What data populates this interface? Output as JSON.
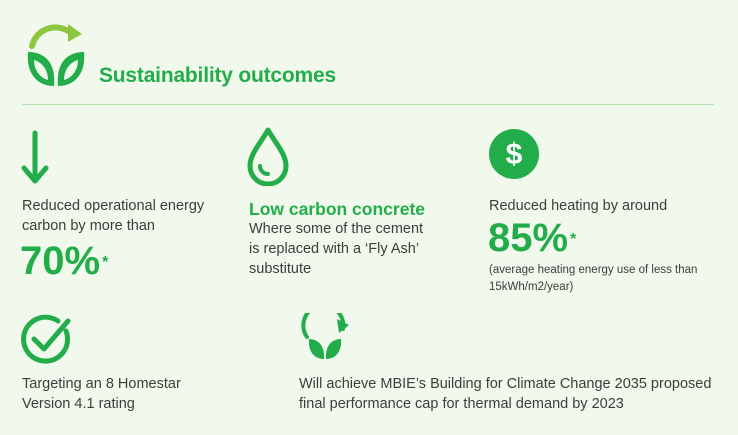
{
  "colors": {
    "accent": "#22ad4a",
    "background": "#f0f9ec",
    "rule": "#b9e2b4",
    "text": "#3d3d3d"
  },
  "header": {
    "title": "Sustainability outcomes",
    "icon": "leaf-recycle-icon"
  },
  "items": {
    "carbon": {
      "icon": "arrow-down-icon",
      "text_line1": "Reduced operational energy",
      "text_line2": "carbon by more than",
      "value": "70%",
      "footnote_mark": "*"
    },
    "concrete": {
      "icon": "water-drop-icon",
      "heading": "Low carbon concrete",
      "text_line1": "Where some of the cement",
      "text_line2": "is replaced with a ‘Fly Ash’",
      "text_line3": "substitute"
    },
    "heating": {
      "icon": "dollar-icon",
      "text_line1": "Reduced heating by around",
      "value": "85%",
      "footnote_mark": "*",
      "note_line1": "(average heating energy use of less than",
      "note_line2": "15kWh/m2/year)"
    },
    "homestar": {
      "icon": "check-circle-icon",
      "text_line1": "Targeting an 8 Homestar",
      "text_line2": "Version 4.1 rating"
    },
    "mbie": {
      "icon": "leaf-recycle-icon",
      "text_line1": "Will achieve MBIE’s Building for Climate Change 2035 proposed",
      "text_line2": "final performance cap for thermal demand by 2023"
    }
  }
}
